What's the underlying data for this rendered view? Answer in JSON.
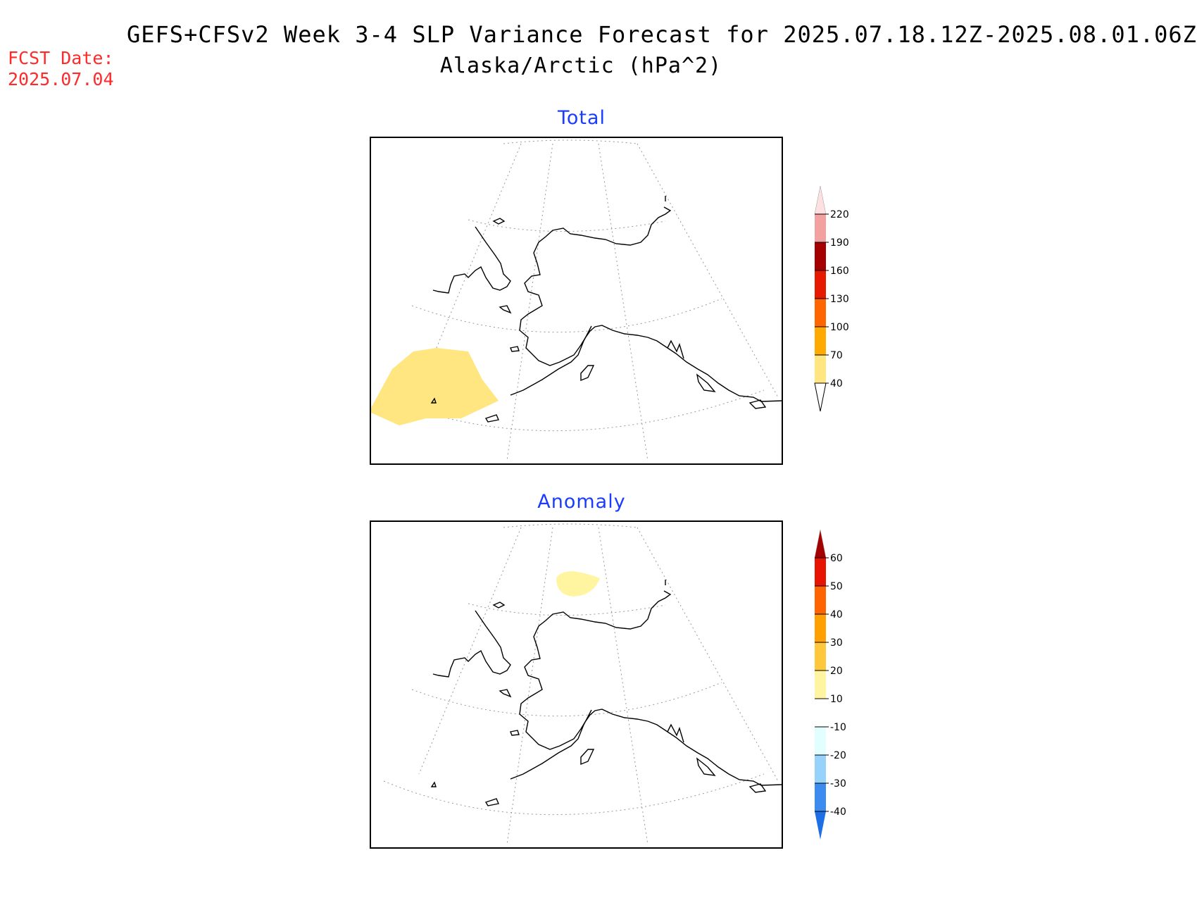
{
  "header": {
    "title_line1": "GEFS+CFSv2 Week 3-4 SLP Variance Forecast for 2025.07.18.12Z-2025.08.01.06Z",
    "title_line2": "Alaska/Arctic (hPa^2)"
  },
  "forecast": {
    "label": "FCST Date:",
    "date": "2025.07.04",
    "color": "#ff2a2a"
  },
  "panels": [
    {
      "title": "Total",
      "colorbar": {
        "levels": [
          "40",
          "70",
          "100",
          "130",
          "160",
          "190",
          "220"
        ],
        "colors": [
          "#ffe680",
          "#ffaa00",
          "#ff6600",
          "#e61a00",
          "#a50000",
          "#f2a0a0",
          "#ffe0e0"
        ],
        "extend": "both"
      }
    },
    {
      "title": "Anomaly",
      "colorbar": {
        "levels": [
          "-40",
          "-30",
          "-20",
          "-10",
          "10",
          "20",
          "30",
          "40",
          "50",
          "60"
        ],
        "colors": [
          "#1e6ee6",
          "#3c8cf0",
          "#96d2fa",
          "#e1ffff",
          "#ffffff",
          "#fff5a0",
          "#ffc83c",
          "#ffa000",
          "#ff6400",
          "#e61400",
          "#a50000"
        ],
        "extend": "both"
      }
    }
  ],
  "colors": {
    "title_blue": "#1a3cff",
    "shade_total": "#ffe680",
    "shade_anomaly": "#fff5a0"
  }
}
